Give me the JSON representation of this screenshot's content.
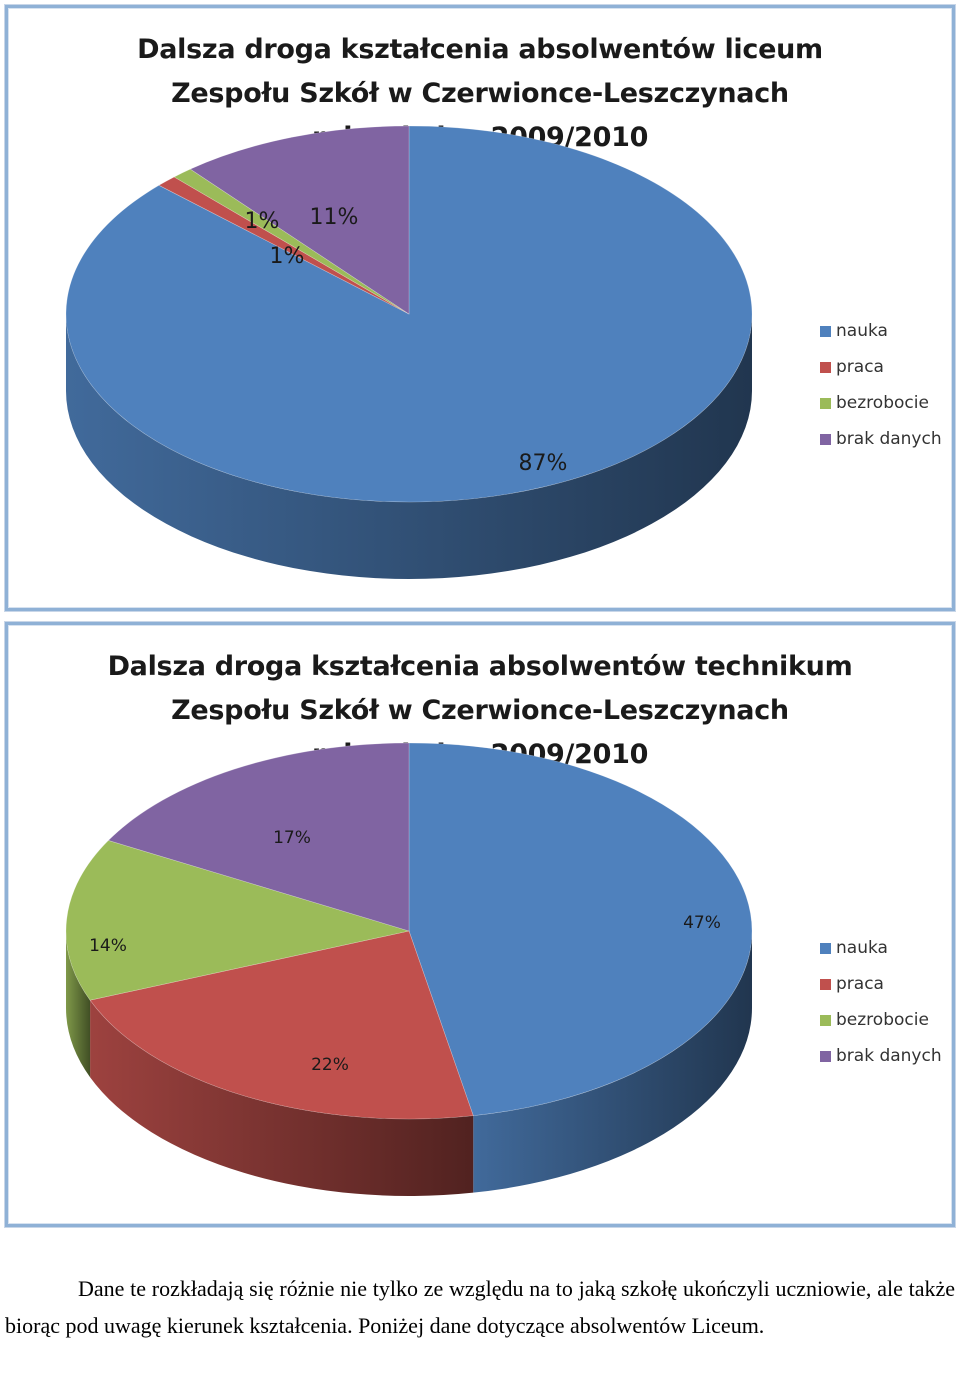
{
  "charts": [
    {
      "title_lines": [
        "Dalsza droga kształcenia absolwentów liceum",
        "Zespołu Szkół w Czerwionce-Leszczynach",
        "rok szkolny 2009/2010"
      ],
      "legend": [
        "nauka",
        "praca",
        "bezrobocie",
        "brak danych"
      ]
    },
    {
      "title_lines": [
        "Dalsza droga kształcenia absolwentów technikum",
        "Zespołu Szkół w Czerwionce-Leszczynach",
        "rok szkolny 2009/2010"
      ],
      "legend": [
        "nauka",
        "praca",
        "bezrobocie",
        "brak danych"
      ]
    }
  ],
  "chart_data": [
    {
      "type": "pie",
      "title": "Dalsza droga kształcenia absolwentów liceum Zespołu Szkół w Czerwionce-Leszczynach rok szkolny 2009/2010",
      "categories": [
        "nauka",
        "praca",
        "bezrobocie",
        "brak danych"
      ],
      "values": [
        87,
        1,
        1,
        11
      ],
      "labels": [
        "87%",
        "1%",
        "1%",
        "11%"
      ],
      "colors": [
        "#4f81bd",
        "#c0504d",
        "#9bbb59",
        "#8064a2"
      ],
      "style": "3d",
      "legend_position": "right"
    },
    {
      "type": "pie",
      "title": "Dalsza droga kształcenia absolwentów technikum Zespołu Szkół w Czerwionce-Leszczynach rok szkolny 2009/2010",
      "categories": [
        "nauka",
        "praca",
        "bezrobocie",
        "brak danych"
      ],
      "values": [
        47,
        22,
        14,
        17
      ],
      "labels": [
        "47%",
        "22%",
        "14%",
        "17%"
      ],
      "colors": [
        "#4f81bd",
        "#c0504d",
        "#9bbb59",
        "#8064a2"
      ],
      "style": "3d",
      "legend_position": "right"
    }
  ],
  "paragraph": "Dane te rozkładają się różnie nie tylko ze względu na to jaką szkołę ukończyli uczniowie, ale także biorąc pod uwagę kierunek kształcenia. Poniżej dane dotyczące absolwentów Liceum."
}
